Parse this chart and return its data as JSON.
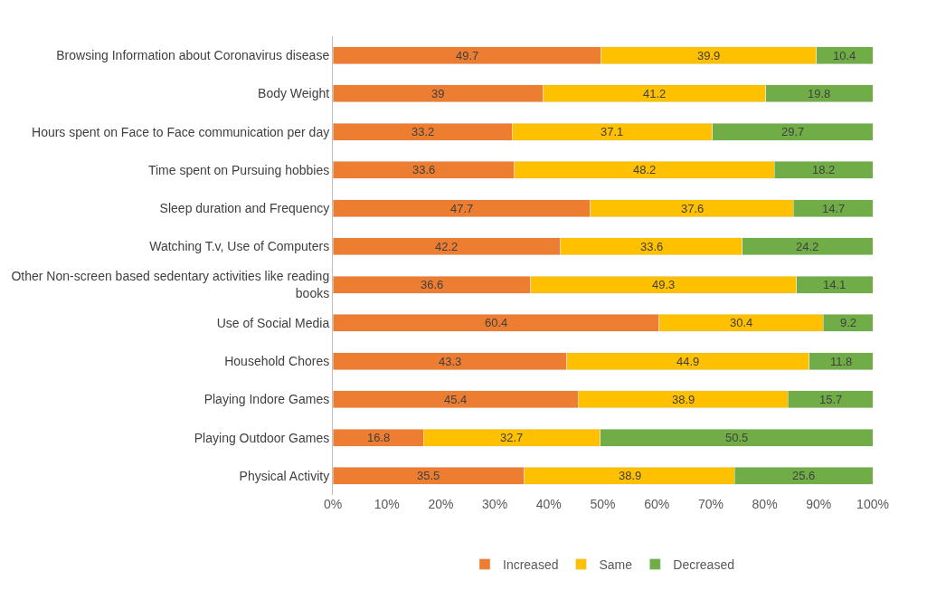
{
  "chart_data": {
    "type": "bar",
    "orientation": "horizontal",
    "stacked": true,
    "data_labels": true,
    "legend": "bottom",
    "categories": [
      "Browsing Information about Coronavirus disease",
      "Body Weight",
      "Hours spent on Face to Face communication per day",
      "Time spent on Pursuing hobbies",
      "Sleep duration and Frequency",
      "Watching T.v, Use of Computers",
      "Other Non-screen based sedentary activities like reading books",
      "Use of Social Media",
      "Household Chores",
      "Playing Indore Games",
      "Playing Outdoor Games",
      "Physical Activity"
    ],
    "series": [
      {
        "name": "Increased",
        "color": "#ed7d31",
        "values": [
          49.7,
          39,
          33.2,
          33.6,
          47.7,
          42.2,
          36.6,
          60.4,
          43.3,
          45.4,
          16.8,
          35.5
        ]
      },
      {
        "name": "Same",
        "color": "#ffc000",
        "values": [
          39.9,
          41.2,
          37.1,
          48.2,
          37.6,
          33.6,
          49.3,
          30.4,
          44.9,
          38.9,
          32.7,
          38.9
        ]
      },
      {
        "name": "Decreased",
        "color": "#70ad47",
        "values": [
          10.4,
          19.8,
          29.7,
          18.2,
          14.7,
          24.2,
          14.1,
          9.2,
          11.8,
          15.7,
          50.5,
          25.6
        ]
      }
    ],
    "xlim": [
      0,
      100
    ],
    "xticks": [
      {
        "value": 0,
        "label": "0%"
      },
      {
        "value": 10,
        "label": "10%"
      },
      {
        "value": 20,
        "label": "20%"
      },
      {
        "value": 30,
        "label": "30%"
      },
      {
        "value": 40,
        "label": "40%"
      },
      {
        "value": 50,
        "label": "50%"
      },
      {
        "value": 60,
        "label": "60%"
      },
      {
        "value": 70,
        "label": "70%"
      },
      {
        "value": 80,
        "label": "80%"
      },
      {
        "value": 90,
        "label": "90%"
      },
      {
        "value": 100,
        "label": "100%"
      }
    ]
  }
}
